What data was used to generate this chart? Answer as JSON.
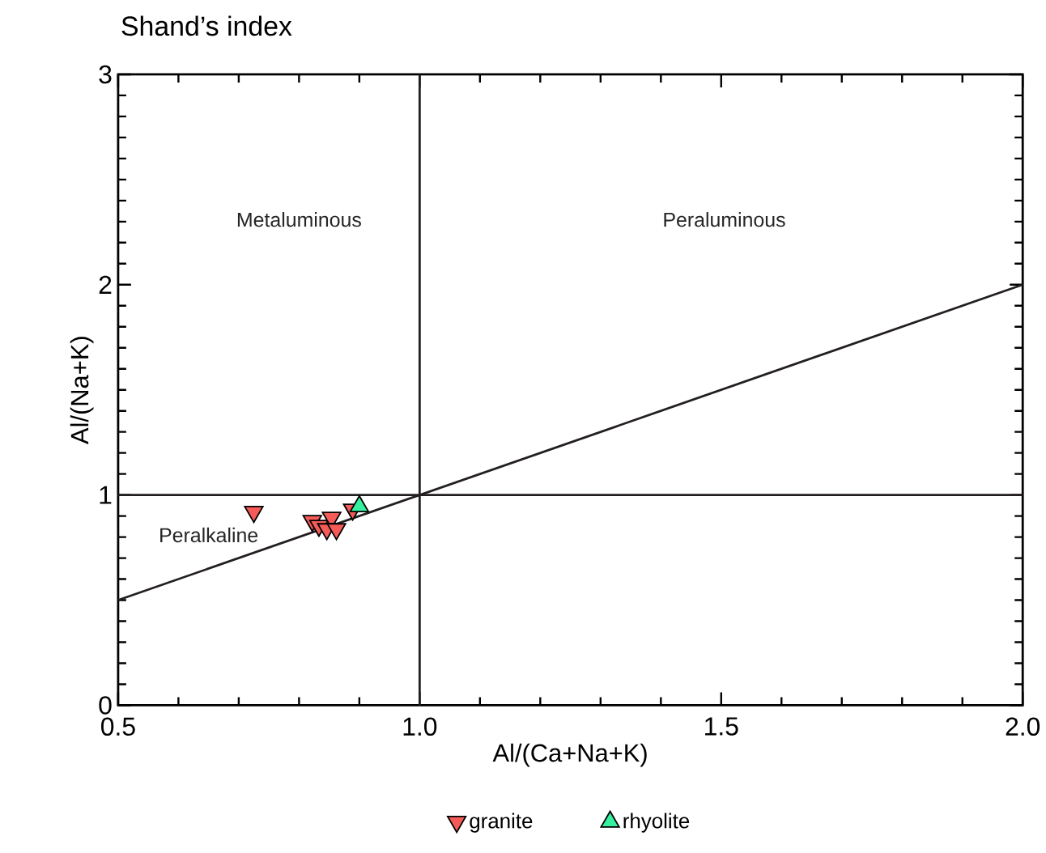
{
  "chart_data": {
    "type": "scatter",
    "title": "Shand’s index",
    "xlabel": "Al/(Ca+Na+K)",
    "ylabel": "Al/(Na+K)",
    "xlim": [
      0.5,
      2.0
    ],
    "ylim": [
      0,
      3
    ],
    "xticks": [
      {
        "value": 0.5,
        "label": "0.5"
      },
      {
        "value": 1.0,
        "label": "1.0"
      },
      {
        "value": 1.5,
        "label": "1.5"
      },
      {
        "value": 2.0,
        "label": "2.0"
      }
    ],
    "yticks": [
      0,
      1,
      2,
      3
    ],
    "series": [
      {
        "name": "granite",
        "color": "#f55b57",
        "marker": "triangle down",
        "x": [
          0.725,
          0.822,
          0.833,
          0.854,
          0.846,
          0.862,
          0.889
        ],
        "values": [
          0.92,
          0.877,
          0.854,
          0.892,
          0.838,
          0.838,
          0.931
        ]
      },
      {
        "name": "rhyolite",
        "color": "#36f0a0",
        "marker": "triangle",
        "x": [
          0.9
        ],
        "values": [
          0.946
        ]
      },
      {
        "type": "line",
        "color": "#231f20",
        "x": [
          0.5,
          2.0
        ],
        "values": [
          0.5,
          2.0
        ]
      },
      {
        "type": "line",
        "color": "#231f20",
        "x": [
          1.0,
          1.0
        ],
        "values": [
          0,
          3
        ]
      },
      {
        "type": "line",
        "color": "#231f20",
        "x": [
          0.5,
          2.0
        ],
        "values": [
          1,
          1
        ]
      }
    ],
    "annotations": [
      "Metaluminous",
      "Peraluminous",
      "Peralkaline"
    ],
    "legend": "bottom"
  }
}
